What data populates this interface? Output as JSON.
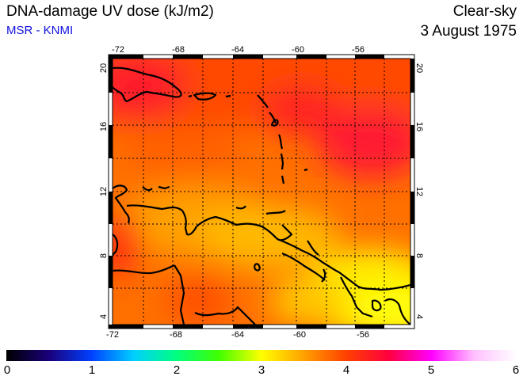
{
  "header": {
    "title": "DNA-damage UV dose (kJ/m2)",
    "subtitle": "MSR - KNMI",
    "sky": "Clear-sky",
    "date": "3 August 1975"
  },
  "map": {
    "lon_ticks": [
      "-72",
      "-68",
      "-64",
      "-60",
      "-56"
    ],
    "lat_ticks": [
      "4",
      "8",
      "12",
      "16",
      "20"
    ],
    "extent": {
      "lon": [
        -72,
        -52
      ],
      "lat": [
        3.5,
        20.5
      ]
    }
  },
  "colorbar": {
    "labels": [
      "0",
      "1",
      "2",
      "3",
      "4",
      "5",
      "6"
    ],
    "range": [
      0,
      6
    ],
    "colors": [
      "#000000",
      "#1a007a",
      "#0040ff",
      "#00d0ff",
      "#00ff80",
      "#40ff00",
      "#ffff00",
      "#ffa000",
      "#ff4000",
      "#ff0040",
      "#ff00ff",
      "#ffc0ff",
      "#ffffff"
    ]
  }
}
